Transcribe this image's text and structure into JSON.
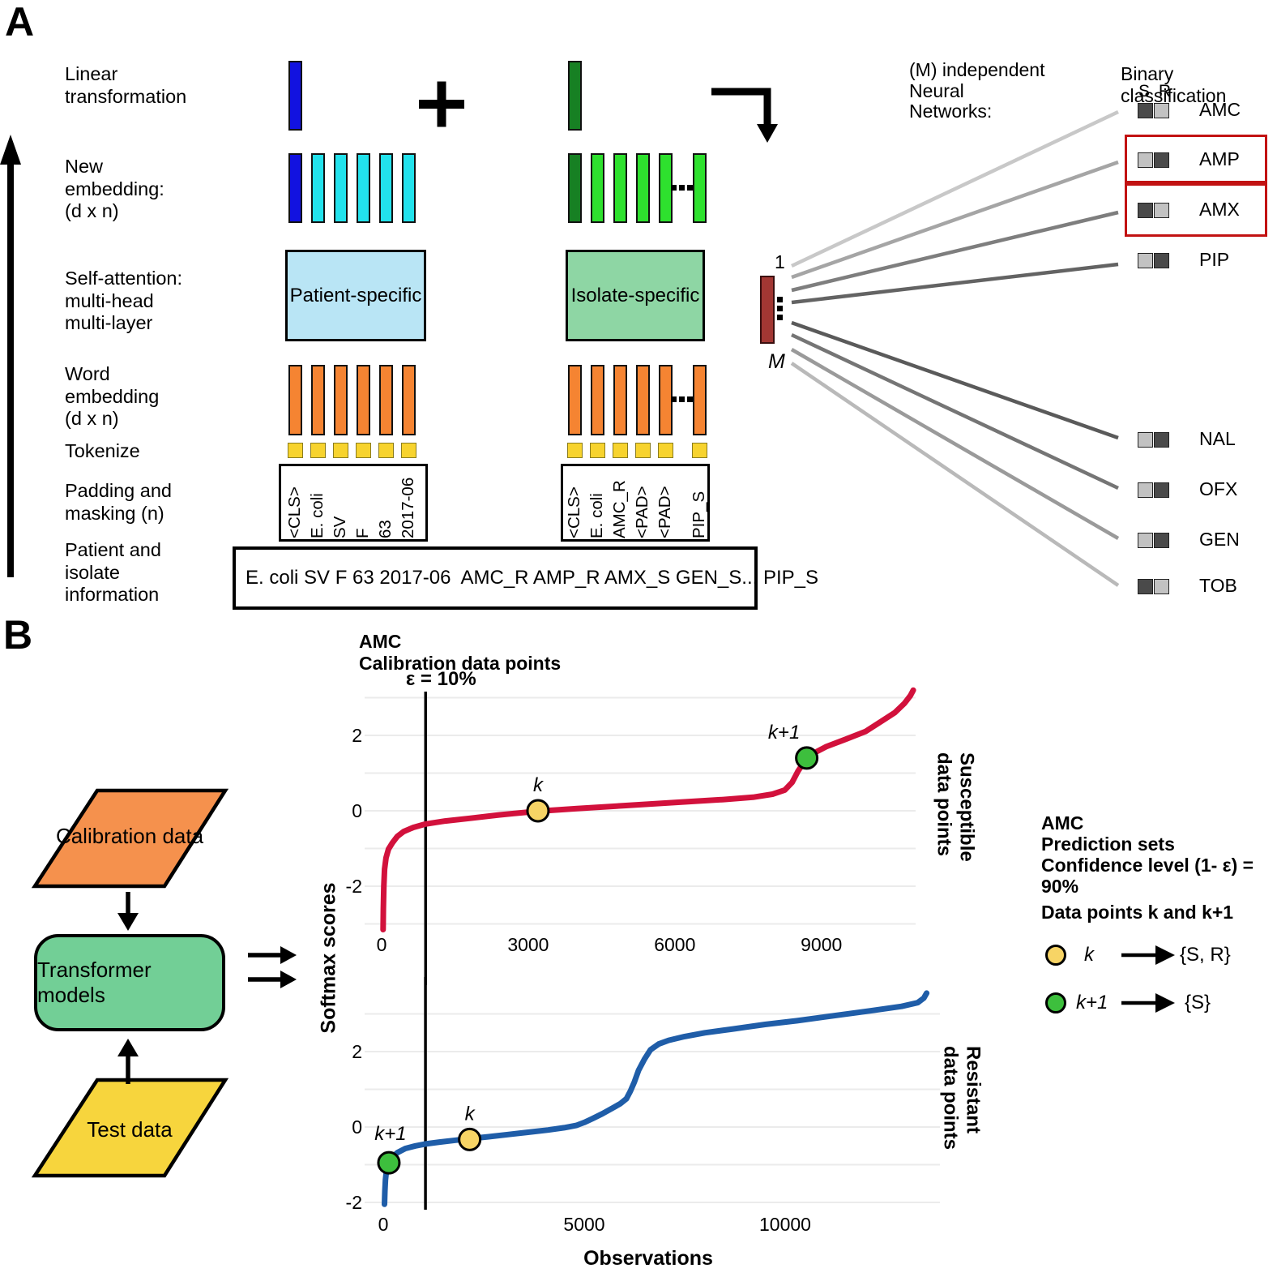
{
  "colors": {
    "blue_dark": "#1212e0",
    "cyan": "#22e2ec",
    "green_dark": "#178023",
    "green_bright": "#2ee12e",
    "patient_box_fill": "#b9e5f5",
    "isolate_box_fill": "#8ed6a4",
    "orange": "#f58432",
    "token_yellow": "#f7d32e",
    "dark_red_bar": "#a23733",
    "red_annotation": "#c21212",
    "square_dark": "#4a4a4a",
    "square_light": "#c2c2c2",
    "flow_orange": "#f5914d",
    "flow_green": "#72cf96",
    "flow_yellow": "#f7d53d",
    "grid": "#ebebeb",
    "marker_k": "#f7d465",
    "marker_k1": "#3dbf3d"
  },
  "panel_a": {
    "label": "A",
    "section_labels": [
      "Linear\ntransformation",
      "New\nembedding:\n(d x n)",
      "Self-attention:\nmulti-head\nmulti-layer",
      "Word\nembedding\n(d x n)",
      "Tokenize",
      "Padding and\nmasking (n)",
      "Patient and\nisolate\ninformation"
    ],
    "patient": {
      "attention_label": "Patient-specific",
      "tokens": [
        "<CLS>",
        "E. coli",
        "SV",
        "F",
        "63",
        "2017-06"
      ]
    },
    "isolate": {
      "attention_label": "Isolate-specific",
      "tokens": [
        "<CLS>",
        "E. coli",
        "AMC_R",
        "<PAD>",
        "<PAD>",
        "PIP_S"
      ]
    },
    "info_text": "E. coli SV F 63 2017-06  AMC_R AMP_R AMX_S GEN_S... PIP_S",
    "nn_header": "(M) independent\nNeural\nNetworks:",
    "index_first": "1",
    "index_last": "M",
    "binary_title": "Binary classification",
    "sr_header": "S R",
    "classes": [
      {
        "name": "AMC",
        "s": "dark",
        "r": "light",
        "boxed": false,
        "line_color": "#c8c8c8"
      },
      {
        "name": "AMP",
        "s": "light",
        "r": "dark",
        "boxed": true,
        "line_color": "#a5a5a5"
      },
      {
        "name": "AMX",
        "s": "dark",
        "r": "light",
        "boxed": true,
        "line_color": "#7e7e7e"
      },
      {
        "name": "PIP",
        "s": "light",
        "r": "dark",
        "boxed": false,
        "line_color": "#636363"
      },
      {
        "name": "NAL",
        "s": "light",
        "r": "dark",
        "boxed": false,
        "line_color": "#5a5a5a"
      },
      {
        "name": "OFX",
        "s": "light",
        "r": "dark",
        "boxed": false,
        "line_color": "#757575"
      },
      {
        "name": "GEN",
        "s": "light",
        "r": "dark",
        "boxed": false,
        "line_color": "#9a9a9a"
      },
      {
        "name": "TOB",
        "s": "dark",
        "r": "light",
        "boxed": false,
        "line_color": "#b9b9b9"
      }
    ]
  },
  "panel_b": {
    "label": "B",
    "flow": {
      "calibration": "Calibration data",
      "model": "Transformer models",
      "test": "Test data"
    },
    "y_axis_label": "Softmax scores",
    "legend": {
      "heading": "AMC\nPrediction sets\nConfidence level (1- ε) = 90%",
      "subheading": "Data points k and k+1",
      "items": [
        {
          "label": "k",
          "set": "{S, R}"
        },
        {
          "label": "k+1",
          "set": "{S}"
        }
      ]
    }
  },
  "chart_data": [
    {
      "type": "line",
      "title": "AMC\nCalibration data points",
      "epsilon_label": "ε = 10%",
      "epsilon_x": 900,
      "x_ticks": [
        0,
        3000,
        6000,
        9000
      ],
      "y_ticks": [
        2,
        0,
        -2
      ],
      "xlim": [
        -200,
        11100
      ],
      "ylim": [
        -3.4,
        3.3
      ],
      "grid": true,
      "right_label": "Susceptible\ndata points",
      "series": [
        {
          "name": "Susceptible data points",
          "color": "#d2113c",
          "points": [
            [
              30,
              -3.15
            ],
            [
              35,
              -2.6
            ],
            [
              45,
              -2.0
            ],
            [
              60,
              -1.55
            ],
            [
              90,
              -1.25
            ],
            [
              140,
              -1.02
            ],
            [
              220,
              -0.85
            ],
            [
              320,
              -0.68
            ],
            [
              450,
              -0.55
            ],
            [
              650,
              -0.44
            ],
            [
              900,
              -0.35
            ],
            [
              1300,
              -0.27
            ],
            [
              1800,
              -0.2
            ],
            [
              2400,
              -0.11
            ],
            [
              3200,
              -0.01
            ],
            [
              4000,
              0.06
            ],
            [
              5000,
              0.14
            ],
            [
              6000,
              0.22
            ],
            [
              7000,
              0.3
            ],
            [
              7600,
              0.36
            ],
            [
              8000,
              0.44
            ],
            [
              8250,
              0.55
            ],
            [
              8400,
              0.75
            ],
            [
              8520,
              1.05
            ],
            [
              8650,
              1.3
            ],
            [
              8800,
              1.5
            ],
            [
              9100,
              1.7
            ],
            [
              9500,
              1.9
            ],
            [
              9900,
              2.1
            ],
            [
              10200,
              2.35
            ],
            [
              10500,
              2.6
            ],
            [
              10700,
              2.85
            ],
            [
              10820,
              3.05
            ],
            [
              10880,
              3.2
            ]
          ]
        }
      ],
      "annotations": [
        {
          "label": "k",
          "x": 3200,
          "y": 0.0,
          "color": "#f7d465"
        },
        {
          "label": "k+1",
          "x": 8700,
          "y": 1.4,
          "color": "#3dbf3d"
        }
      ]
    },
    {
      "type": "line",
      "xlabel": "Observations",
      "epsilon_x": 1050,
      "x_ticks": [
        0,
        5000,
        10000
      ],
      "y_ticks": [
        2,
        0,
        -2
      ],
      "xlim": [
        -200,
        14200
      ],
      "ylim": [
        -2.25,
        3.75
      ],
      "grid": true,
      "right_label": "Resistant\ndata points",
      "series": [
        {
          "name": "Resistant data points",
          "color": "#1f5da8",
          "points": [
            [
              30,
              -2.05
            ],
            [
              40,
              -1.7
            ],
            [
              55,
              -1.4
            ],
            [
              80,
              -1.15
            ],
            [
              120,
              -0.98
            ],
            [
              200,
              -0.82
            ],
            [
              350,
              -0.68
            ],
            [
              550,
              -0.57
            ],
            [
              800,
              -0.5
            ],
            [
              1050,
              -0.45
            ],
            [
              1400,
              -0.4
            ],
            [
              1800,
              -0.35
            ],
            [
              2150,
              -0.31
            ],
            [
              2600,
              -0.26
            ],
            [
              3100,
              -0.2
            ],
            [
              3600,
              -0.14
            ],
            [
              4100,
              -0.08
            ],
            [
              4500,
              -0.02
            ],
            [
              4800,
              0.04
            ],
            [
              5000,
              0.12
            ],
            [
              5200,
              0.22
            ],
            [
              5450,
              0.35
            ],
            [
              5700,
              0.5
            ],
            [
              5900,
              0.62
            ],
            [
              6050,
              0.75
            ],
            [
              6150,
              0.95
            ],
            [
              6250,
              1.2
            ],
            [
              6350,
              1.5
            ],
            [
              6500,
              1.8
            ],
            [
              6650,
              2.05
            ],
            [
              6850,
              2.2
            ],
            [
              7100,
              2.3
            ],
            [
              7500,
              2.4
            ],
            [
              8000,
              2.5
            ],
            [
              8700,
              2.6
            ],
            [
              9500,
              2.72
            ],
            [
              10300,
              2.82
            ],
            [
              11200,
              2.95
            ],
            [
              12100,
              3.08
            ],
            [
              12900,
              3.2
            ],
            [
              13300,
              3.3
            ],
            [
              13450,
              3.42
            ],
            [
              13520,
              3.55
            ]
          ]
        }
      ],
      "annotations": [
        {
          "label": "k+1",
          "x": 140,
          "y": -0.95,
          "color": "#3dbf3d"
        },
        {
          "label": "k",
          "x": 2150,
          "y": -0.33,
          "color": "#f7d465"
        }
      ]
    }
  ]
}
